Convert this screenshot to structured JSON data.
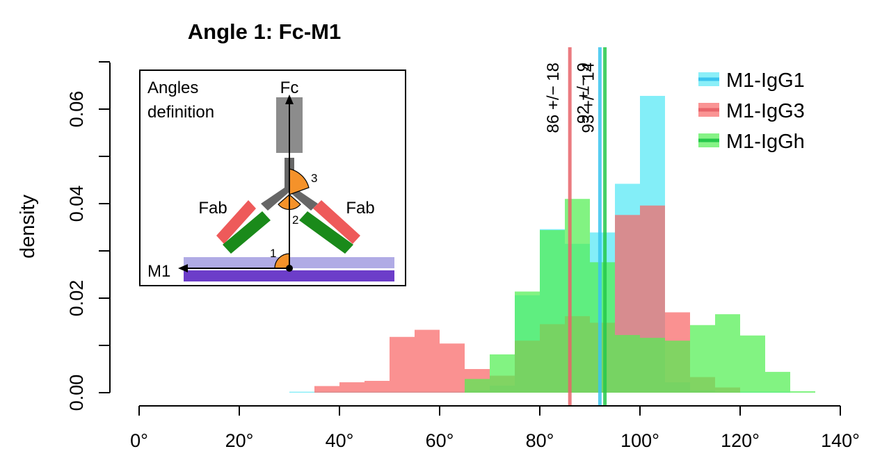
{
  "chart_data": {
    "type": "bar",
    "title": "Angle 1: Fc-M1",
    "xlabel": "",
    "ylabel": "density",
    "xlim": [
      0,
      140
    ],
    "ylim": [
      0,
      0.07
    ],
    "x_ticks": [
      "0°",
      "20°",
      "40°",
      "60°",
      "80°",
      "100°",
      "120°",
      "140°"
    ],
    "x_tick_values": [
      0,
      20,
      40,
      60,
      80,
      100,
      120,
      140
    ],
    "y_ticks": [
      "0.00",
      "0.02",
      "0.04",
      "0.06"
    ],
    "y_tick_values": [
      0,
      0.02,
      0.04,
      0.06
    ],
    "grid": false,
    "legend_position": "top-right",
    "bin_width": 5,
    "series": [
      {
        "name": "M1-IgG1",
        "fill": "#5ae8f5",
        "line_color": "#3ac4ee",
        "bins": [
          [
            30,
            0.0002
          ],
          [
            35,
            0.0002
          ],
          [
            40,
            0.0002
          ],
          [
            45,
            0.0002
          ],
          [
            50,
            0.0002
          ],
          [
            55,
            0.0002
          ],
          [
            60,
            0.0002
          ],
          [
            65,
            0.0005
          ],
          [
            70,
            0.0015
          ],
          [
            75,
            0.0206
          ],
          [
            80,
            0.0346
          ],
          [
            85,
            0.0315
          ],
          [
            90,
            0.0339
          ],
          [
            95,
            0.0442
          ],
          [
            100,
            0.0628
          ],
          [
            105,
            0.0022
          ],
          [
            110,
            0.0005
          ],
          [
            115,
            0.0002
          ],
          [
            120,
            0.0002
          ],
          [
            125,
            0.0002
          ]
        ],
        "mean_line": 92,
        "annotation": "92  +/− 9"
      },
      {
        "name": "M1-IgG3",
        "fill": "#f86666",
        "line_color": "#e8646a",
        "bins": [
          [
            35,
            0.0014
          ],
          [
            40,
            0.0022
          ],
          [
            45,
            0.0025
          ],
          [
            50,
            0.0118
          ],
          [
            55,
            0.0133
          ],
          [
            60,
            0.0104
          ],
          [
            65,
            0.005
          ],
          [
            70,
            0.0036
          ],
          [
            75,
            0.011
          ],
          [
            80,
            0.0145
          ],
          [
            85,
            0.0162
          ],
          [
            90,
            0.0148
          ],
          [
            95,
            0.0376
          ],
          [
            100,
            0.0396
          ],
          [
            105,
            0.017
          ],
          [
            110,
            0.0033
          ],
          [
            115,
            0.0011
          ]
        ],
        "mean_line": 86,
        "annotation": "86  +/− 18"
      },
      {
        "name": "M1-IgGh",
        "fill": "#52ee52",
        "line_color": "#25c84a",
        "bins": [
          [
            65,
            0.0029
          ],
          [
            70,
            0.0081
          ],
          [
            75,
            0.0214
          ],
          [
            80,
            0.0344
          ],
          [
            85,
            0.041
          ],
          [
            90,
            0.0276
          ],
          [
            95,
            0.0122
          ],
          [
            100,
            0.0116
          ],
          [
            105,
            0.011
          ],
          [
            110,
            0.0143
          ],
          [
            115,
            0.0166
          ],
          [
            120,
            0.0121
          ],
          [
            125,
            0.0044
          ],
          [
            130,
            0.0003
          ]
        ],
        "mean_line": 93,
        "annotation": "93  +/− 14"
      }
    ]
  },
  "inset": {
    "title_line1": "Angles",
    "title_line2": "definition",
    "label_fc": "Fc",
    "label_fab_left": "Fab",
    "label_fab_right": "Fab",
    "label_m1": "M1",
    "angle_1": "1",
    "angle_2": "2",
    "angle_3": "3"
  }
}
